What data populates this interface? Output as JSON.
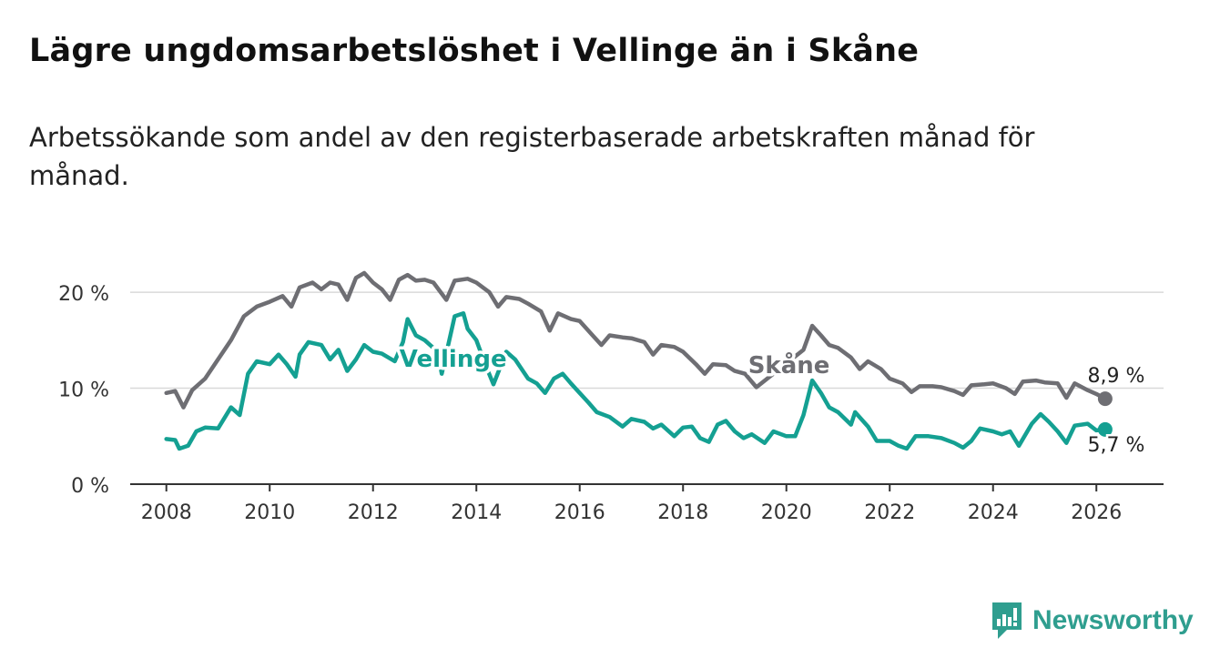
{
  "title": "Lägre ungdomsarbetslöshet i Vellinge än i Skåne",
  "subtitle": "Arbetssökande som andel av den registerbaserade arbetskraften månad för månad.",
  "logo": {
    "text": "Newsworthy"
  },
  "chart_data": {
    "type": "line",
    "title": "Lägre ungdomsarbetslöshet i Vellinge än i Skåne",
    "xlabel": "",
    "ylabel": "",
    "xlim": [
      2007.3,
      2027.3
    ],
    "ylim": [
      0,
      22
    ],
    "x_ticks": [
      2008,
      2010,
      2012,
      2014,
      2016,
      2018,
      2020,
      2022,
      2024,
      2026
    ],
    "y_ticks": [
      {
        "value": 0,
        "label": "0 %"
      },
      {
        "value": 10,
        "label": "10 %"
      },
      {
        "value": 20,
        "label": "20 %"
      }
    ],
    "grid": true,
    "series": [
      {
        "name": "Skåne",
        "label": "Skåne",
        "color": "#6e6e73",
        "end_label": "8,9 %",
        "points": [
          [
            2008.0,
            9.5
          ],
          [
            2008.17,
            9.7
          ],
          [
            2008.33,
            8.0
          ],
          [
            2008.5,
            9.8
          ],
          [
            2008.75,
            11.0
          ],
          [
            2009.0,
            13.0
          ],
          [
            2009.25,
            15.0
          ],
          [
            2009.5,
            17.5
          ],
          [
            2009.75,
            18.5
          ],
          [
            2010.0,
            19.0
          ],
          [
            2010.25,
            19.6
          ],
          [
            2010.42,
            18.5
          ],
          [
            2010.58,
            20.5
          ],
          [
            2010.83,
            21.0
          ],
          [
            2011.0,
            20.3
          ],
          [
            2011.17,
            21.0
          ],
          [
            2011.33,
            20.8
          ],
          [
            2011.5,
            19.2
          ],
          [
            2011.67,
            21.5
          ],
          [
            2011.83,
            22.0
          ],
          [
            2012.0,
            21.0
          ],
          [
            2012.17,
            20.3
          ],
          [
            2012.33,
            19.2
          ],
          [
            2012.5,
            21.3
          ],
          [
            2012.67,
            21.8
          ],
          [
            2012.83,
            21.2
          ],
          [
            2013.0,
            21.3
          ],
          [
            2013.17,
            21.0
          ],
          [
            2013.42,
            19.2
          ],
          [
            2013.58,
            21.2
          ],
          [
            2013.83,
            21.4
          ],
          [
            2014.0,
            21.0
          ],
          [
            2014.25,
            20.0
          ],
          [
            2014.42,
            18.5
          ],
          [
            2014.58,
            19.5
          ],
          [
            2014.83,
            19.3
          ],
          [
            2015.0,
            18.8
          ],
          [
            2015.25,
            18.0
          ],
          [
            2015.42,
            16.0
          ],
          [
            2015.58,
            17.8
          ],
          [
            2015.83,
            17.2
          ],
          [
            2016.0,
            17.0
          ],
          [
            2016.25,
            15.5
          ],
          [
            2016.42,
            14.5
          ],
          [
            2016.58,
            15.5
          ],
          [
            2016.83,
            15.3
          ],
          [
            2017.0,
            15.2
          ],
          [
            2017.25,
            14.8
          ],
          [
            2017.42,
            13.5
          ],
          [
            2017.58,
            14.5
          ],
          [
            2017.83,
            14.3
          ],
          [
            2018.0,
            13.8
          ],
          [
            2018.25,
            12.5
          ],
          [
            2018.42,
            11.5
          ],
          [
            2018.58,
            12.5
          ],
          [
            2018.83,
            12.4
          ],
          [
            2019.0,
            11.8
          ],
          [
            2019.2,
            11.5
          ],
          [
            2019.42,
            10.1
          ],
          [
            2020.33,
            14.0
          ],
          [
            2020.5,
            16.5
          ],
          [
            2020.67,
            15.5
          ],
          [
            2020.83,
            14.5
          ],
          [
            2021.0,
            14.2
          ],
          [
            2021.25,
            13.2
          ],
          [
            2021.42,
            12.0
          ],
          [
            2021.58,
            12.8
          ],
          [
            2021.83,
            12.0
          ],
          [
            2022.0,
            11.0
          ],
          [
            2022.25,
            10.5
          ],
          [
            2022.42,
            9.6
          ],
          [
            2022.58,
            10.2
          ],
          [
            2022.83,
            10.2
          ],
          [
            2023.0,
            10.1
          ],
          [
            2023.25,
            9.7
          ],
          [
            2023.42,
            9.3
          ],
          [
            2023.58,
            10.3
          ],
          [
            2023.83,
            10.4
          ],
          [
            2024.0,
            10.5
          ],
          [
            2024.25,
            10.0
          ],
          [
            2024.42,
            9.4
          ],
          [
            2024.58,
            10.7
          ],
          [
            2024.83,
            10.8
          ],
          [
            2025.0,
            10.6
          ],
          [
            2025.25,
            10.5
          ],
          [
            2025.42,
            9.0
          ],
          [
            2025.58,
            10.5
          ],
          [
            2025.83,
            9.8
          ],
          [
            2026.0,
            9.4
          ],
          [
            2026.17,
            8.9
          ]
        ]
      },
      {
        "name": "Vellinge",
        "label": "Vellinge",
        "color": "#14a092",
        "end_label": "5,7 %",
        "points": [
          [
            2008.0,
            4.7
          ],
          [
            2008.17,
            4.6
          ],
          [
            2008.25,
            3.7
          ],
          [
            2008.42,
            4.0
          ],
          [
            2008.58,
            5.5
          ],
          [
            2008.75,
            5.9
          ],
          [
            2009.0,
            5.8
          ],
          [
            2009.25,
            8.0
          ],
          [
            2009.42,
            7.2
          ],
          [
            2009.58,
            11.5
          ],
          [
            2009.75,
            12.8
          ],
          [
            2010.0,
            12.5
          ],
          [
            2010.17,
            13.5
          ],
          [
            2010.33,
            12.5
          ],
          [
            2010.5,
            11.2
          ],
          [
            2010.58,
            13.5
          ],
          [
            2010.75,
            14.8
          ],
          [
            2011.0,
            14.5
          ],
          [
            2011.17,
            13.0
          ],
          [
            2011.33,
            14.0
          ],
          [
            2011.5,
            11.8
          ],
          [
            2011.67,
            13.0
          ],
          [
            2011.83,
            14.5
          ],
          [
            2012.0,
            13.8
          ],
          [
            2012.17,
            13.6
          ],
          [
            2012.42,
            12.8
          ],
          [
            2012.58,
            14.8
          ],
          [
            2012.67,
            17.2
          ],
          [
            2012.83,
            15.5
          ],
          [
            2013.0,
            15.0
          ],
          [
            2013.25,
            13.8
          ],
          [
            2013.33,
            11.5
          ],
          [
            2013.58,
            17.5
          ],
          [
            2013.75,
            17.8
          ],
          [
            2013.83,
            16.2
          ],
          [
            2014.0,
            15.0
          ],
          [
            2014.17,
            12.5
          ],
          [
            2014.33,
            10.4
          ],
          [
            2014.58,
            13.8
          ],
          [
            2014.75,
            13.0
          ],
          [
            2015.0,
            11.0
          ],
          [
            2015.17,
            10.5
          ],
          [
            2015.33,
            9.5
          ],
          [
            2015.5,
            11.0
          ],
          [
            2015.67,
            11.5
          ],
          [
            2015.83,
            10.5
          ],
          [
            2016.0,
            9.5
          ],
          [
            2016.17,
            8.5
          ],
          [
            2016.33,
            7.5
          ],
          [
            2016.58,
            7.0
          ],
          [
            2016.83,
            6.0
          ],
          [
            2017.0,
            6.8
          ],
          [
            2017.25,
            6.5
          ],
          [
            2017.42,
            5.8
          ],
          [
            2017.58,
            6.2
          ],
          [
            2017.83,
            5.0
          ],
          [
            2018.0,
            5.9
          ],
          [
            2018.17,
            6.0
          ],
          [
            2018.33,
            4.8
          ],
          [
            2018.5,
            4.4
          ],
          [
            2018.67,
            6.2
          ],
          [
            2018.83,
            6.6
          ],
          [
            2019.0,
            5.5
          ],
          [
            2019.17,
            4.8
          ],
          [
            2019.33,
            5.2
          ],
          [
            2019.58,
            4.3
          ],
          [
            2019.75,
            5.5
          ],
          [
            2020.0,
            5.0
          ],
          [
            2020.17,
            5.0
          ],
          [
            2020.33,
            7.2
          ],
          [
            2020.5,
            10.8
          ],
          [
            2020.67,
            9.5
          ],
          [
            2020.83,
            8.0
          ],
          [
            2021.0,
            7.5
          ],
          [
            2021.25,
            6.2
          ],
          [
            2021.33,
            7.5
          ],
          [
            2021.58,
            6.0
          ],
          [
            2021.75,
            4.5
          ],
          [
            2022.0,
            4.5
          ],
          [
            2022.17,
            4.0
          ],
          [
            2022.33,
            3.7
          ],
          [
            2022.5,
            5.0
          ],
          [
            2022.75,
            5.0
          ],
          [
            2023.0,
            4.8
          ],
          [
            2023.25,
            4.3
          ],
          [
            2023.42,
            3.8
          ],
          [
            2023.58,
            4.5
          ],
          [
            2023.75,
            5.8
          ],
          [
            2024.0,
            5.5
          ],
          [
            2024.17,
            5.2
          ],
          [
            2024.33,
            5.5
          ],
          [
            2024.5,
            4.0
          ],
          [
            2024.75,
            6.3
          ],
          [
            2024.92,
            7.3
          ],
          [
            2025.08,
            6.5
          ],
          [
            2025.25,
            5.5
          ],
          [
            2025.42,
            4.3
          ],
          [
            2025.58,
            6.1
          ],
          [
            2025.83,
            6.3
          ],
          [
            2026.0,
            5.6
          ],
          [
            2026.17,
            5.7
          ]
        ]
      }
    ]
  }
}
